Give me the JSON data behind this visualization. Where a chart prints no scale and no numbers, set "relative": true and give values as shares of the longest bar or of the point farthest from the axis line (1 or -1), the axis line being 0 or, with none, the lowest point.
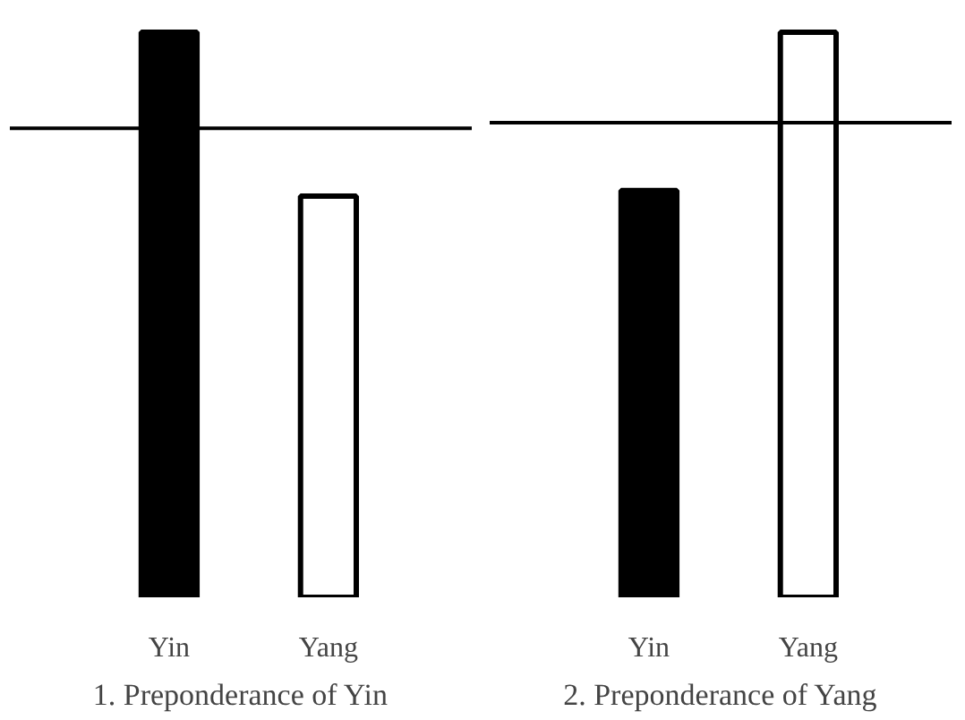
{
  "chart_data": [
    {
      "type": "bar",
      "title": "1. Preponderance of Yin",
      "categories": [
        "Yin",
        "Yang"
      ],
      "values": [
        1,
        0.71
      ],
      "colors": [
        "#000000",
        "#ffffff"
      ],
      "relative": true,
      "grid": false,
      "ref_lines": [
        {
          "axis": "y",
          "value": 0.83,
          "color": "#000000"
        }
      ]
    },
    {
      "type": "bar",
      "title": "2. Preponderance of Yang",
      "categories": [
        "Yin",
        "Yang"
      ],
      "values": [
        0.72,
        1
      ],
      "colors": [
        "#000000",
        "#ffffff"
      ],
      "relative": true,
      "grid": false,
      "ref_lines": [
        {
          "axis": "y",
          "value": 0.84,
          "color": "#000000"
        }
      ]
    }
  ]
}
